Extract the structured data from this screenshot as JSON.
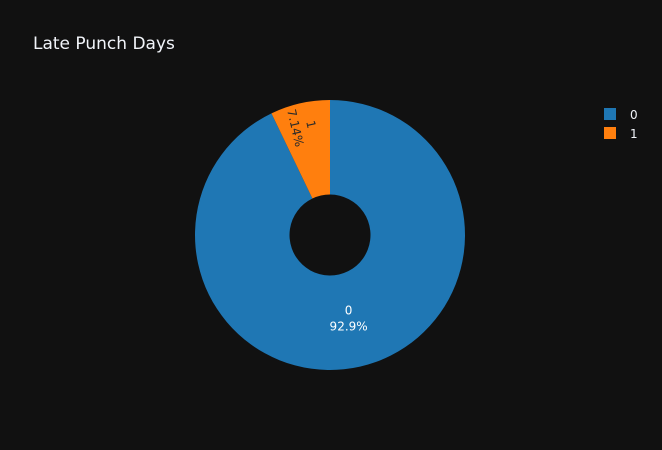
{
  "chart_data": {
    "type": "pie",
    "title": "Late Punch Days",
    "hole": 0.3,
    "labels": [
      "0",
      "1"
    ],
    "values": [
      92.86,
      7.14
    ],
    "percent_labels": [
      "92.9%",
      "7.14%"
    ],
    "colors": [
      "#1f77b4",
      "#ff7f0e"
    ],
    "legend": {
      "placement": "top-right",
      "entries": [
        "0",
        "1"
      ]
    }
  }
}
